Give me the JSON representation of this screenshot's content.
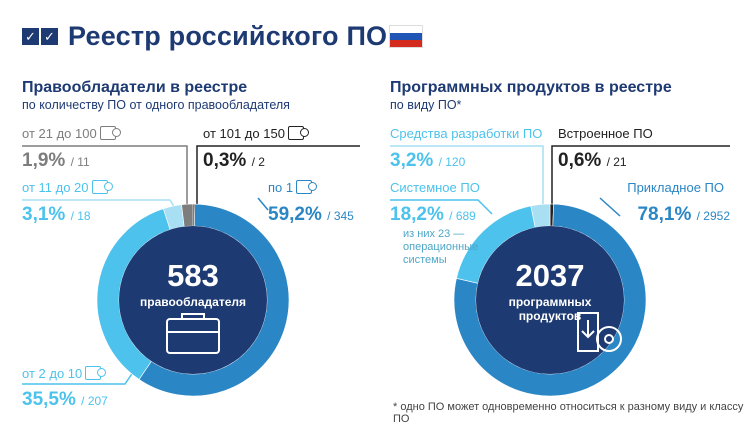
{
  "header": {
    "title": "Реестр российского ПО"
  },
  "left": {
    "title": "Правообладатели в реестре",
    "subtitle": "по количеству ПО от одного правообладателя",
    "center_number": "583",
    "center_label": "правообладателя",
    "labels": {
      "s21_100": {
        "label": "от 21 до 100",
        "pct": "1,9%",
        "count": "/ 11"
      },
      "s11_20": {
        "label": "от 11 до 20",
        "pct": "3,1%",
        "count": "/ 18"
      },
      "s2_10": {
        "label": "от 2 до 10",
        "pct": "35,5%",
        "count": "/ 207"
      },
      "s101_150": {
        "label": "от 101 до 150",
        "pct": "0,3%",
        "count": "/ 2"
      },
      "s1": {
        "label": "по 1",
        "pct": "59,2%",
        "count": "/ 345"
      }
    }
  },
  "right": {
    "title": "Программных продуктов в реестре",
    "subtitle": "по виду ПО*",
    "center_number": "2037",
    "center_label_1": "программных",
    "center_label_2": "продуктов",
    "labels": {
      "dev": {
        "label": "Средства разработки ПО",
        "pct": "3,2%",
        "count": "/ 120"
      },
      "sys": {
        "label": "Системное ПО",
        "pct": "18,2%",
        "count": "/ 689",
        "note_1": "из них 23 —",
        "note_2": "операционные",
        "note_3": "системы"
      },
      "emb": {
        "label": "Встроенное ПО",
        "pct": "0,6%",
        "count": "/ 21"
      },
      "app": {
        "label": "Прикладное ПО",
        "pct": "78,1%",
        "count": "/ 2952"
      }
    }
  },
  "footnote": "* одно ПО может одновременно относиться к разному виду и классу ПО",
  "colors": {
    "navy": "#1e3a72",
    "blue": "#2a86c4",
    "light_blue": "#4cc2ec",
    "pale_blue": "#a9dff3",
    "gray": "#7d7d7d",
    "dark": "#222222"
  },
  "chart_data": [
    {
      "type": "pie",
      "title": "Правообладатели в реестре",
      "total": 583,
      "categories": [
        "по 1",
        "от 2 до 10",
        "от 11 до 20",
        "от 21 до 100",
        "от 101 до 150"
      ],
      "values": [
        345,
        207,
        18,
        11,
        2
      ],
      "percents": [
        59.2,
        35.5,
        3.1,
        1.9,
        0.3
      ],
      "colors": [
        "#2a86c4",
        "#4cc2ec",
        "#a9dff3",
        "#7d7d7d",
        "#222222"
      ]
    },
    {
      "type": "pie",
      "title": "Программных продуктов в реестре",
      "total": 2037,
      "categories": [
        "Прикладное ПО",
        "Системное ПО",
        "Средства разработки ПО",
        "Встроенное ПО"
      ],
      "values": [
        2952,
        689,
        120,
        21
      ],
      "percents": [
        78.1,
        18.2,
        3.2,
        0.6
      ],
      "colors": [
        "#2a86c4",
        "#4cc2ec",
        "#a9dff3",
        "#222222"
      ]
    }
  ]
}
